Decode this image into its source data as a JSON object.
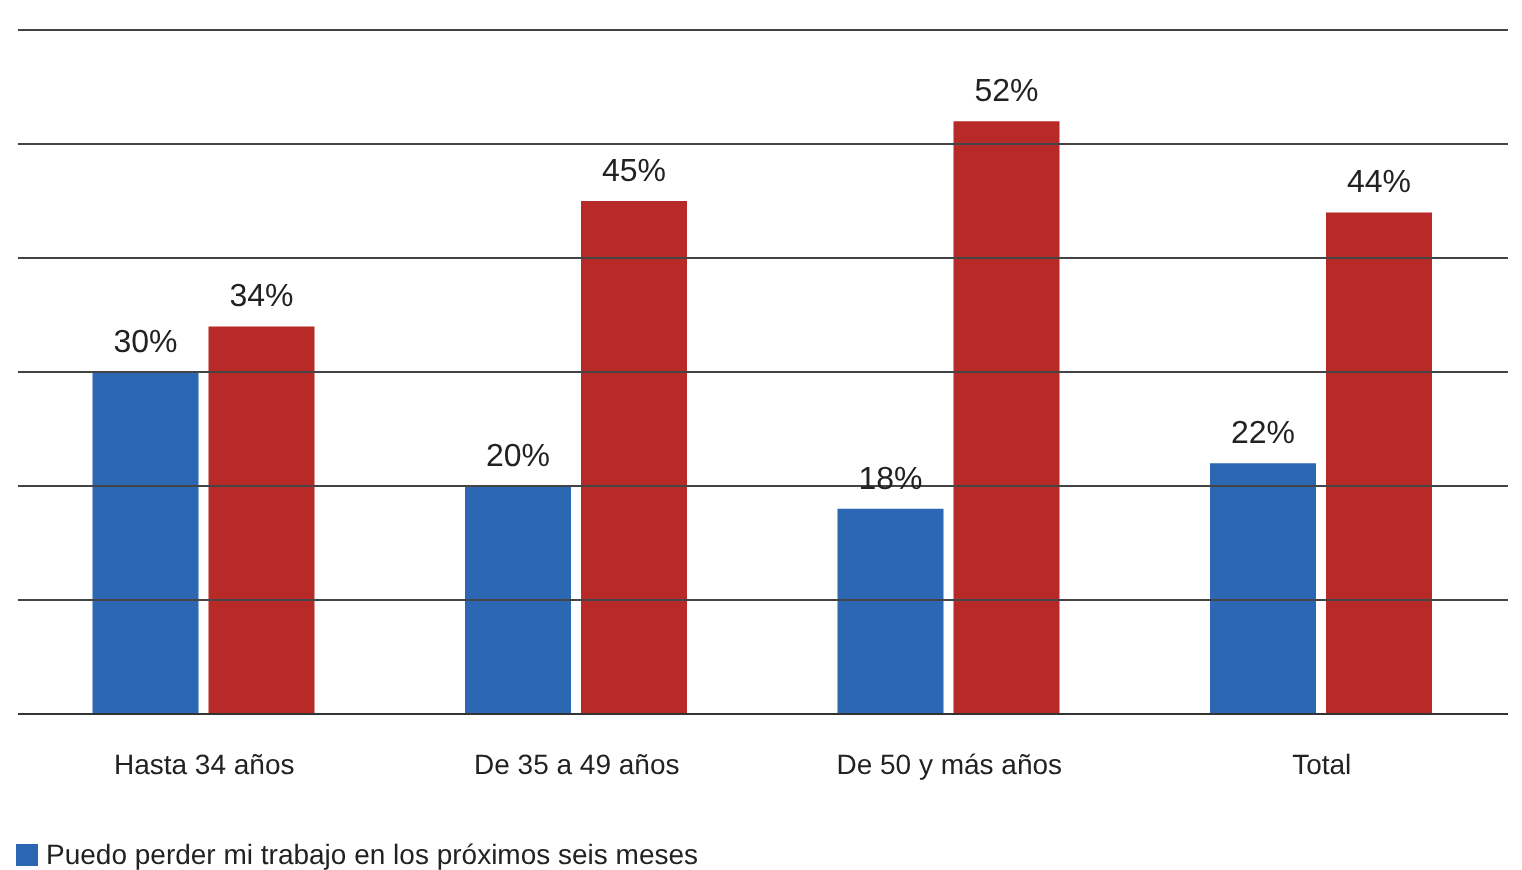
{
  "chart_data": {
    "type": "bar",
    "categories": [
      "Hasta 34 años",
      "De 35 a 49 años",
      "De 50 y más años",
      "Total"
    ],
    "series": [
      {
        "name": "Puedo perder mi trabajo en los próximos seis meses",
        "color": "#2b67b3",
        "values": [
          30,
          20,
          18,
          22
        ],
        "value_labels": [
          "30%",
          "20%",
          "18%",
          "22%"
        ]
      },
      {
        "color": "#b82a27",
        "values": [
          34,
          45,
          52,
          44
        ],
        "value_labels": [
          "34%",
          "45%",
          "52%",
          "44%"
        ]
      }
    ],
    "ylim": [
      0,
      60
    ],
    "yticks": [
      {
        "value": 0,
        "label": null
      },
      {
        "value": 10,
        "label": null
      },
      {
        "value": 20,
        "label": null
      },
      {
        "value": 30,
        "label": null
      },
      {
        "value": 40,
        "label": null
      },
      {
        "value": 50,
        "label": null
      },
      {
        "value": 60,
        "label": null
      }
    ],
    "tick_labels": "x",
    "grid": "y",
    "legend": "bottom left"
  }
}
